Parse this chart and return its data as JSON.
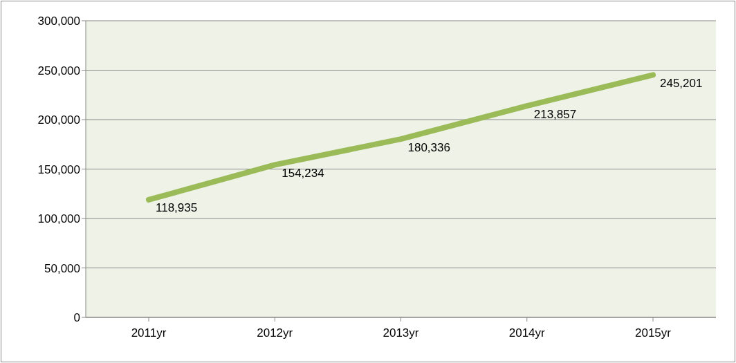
{
  "chart_data": {
    "type": "line",
    "categories": [
      "2011yr",
      "2012yr",
      "2013yr",
      "2014yr",
      "2015yr"
    ],
    "series": [
      {
        "color": "#9bbb59",
        "values": [
          118935,
          154234,
          180336,
          213857,
          245201
        ],
        "value_labels": [
          "118,935",
          "154,234",
          "180,336",
          "213,857",
          "245,201"
        ]
      }
    ],
    "ylim": [
      0,
      300000
    ],
    "yticks": [
      {
        "value": 0,
        "label": "0"
      },
      {
        "value": 50000,
        "label": "50,000"
      },
      {
        "value": 100000,
        "label": "100,000"
      },
      {
        "value": 150000,
        "label": "150,000"
      },
      {
        "value": 200000,
        "label": "200,000"
      },
      {
        "value": 250000,
        "label": "250,000"
      },
      {
        "value": 300000,
        "label": "300,000"
      }
    ],
    "grid": "y",
    "marker": "none",
    "line_style": "solid"
  }
}
